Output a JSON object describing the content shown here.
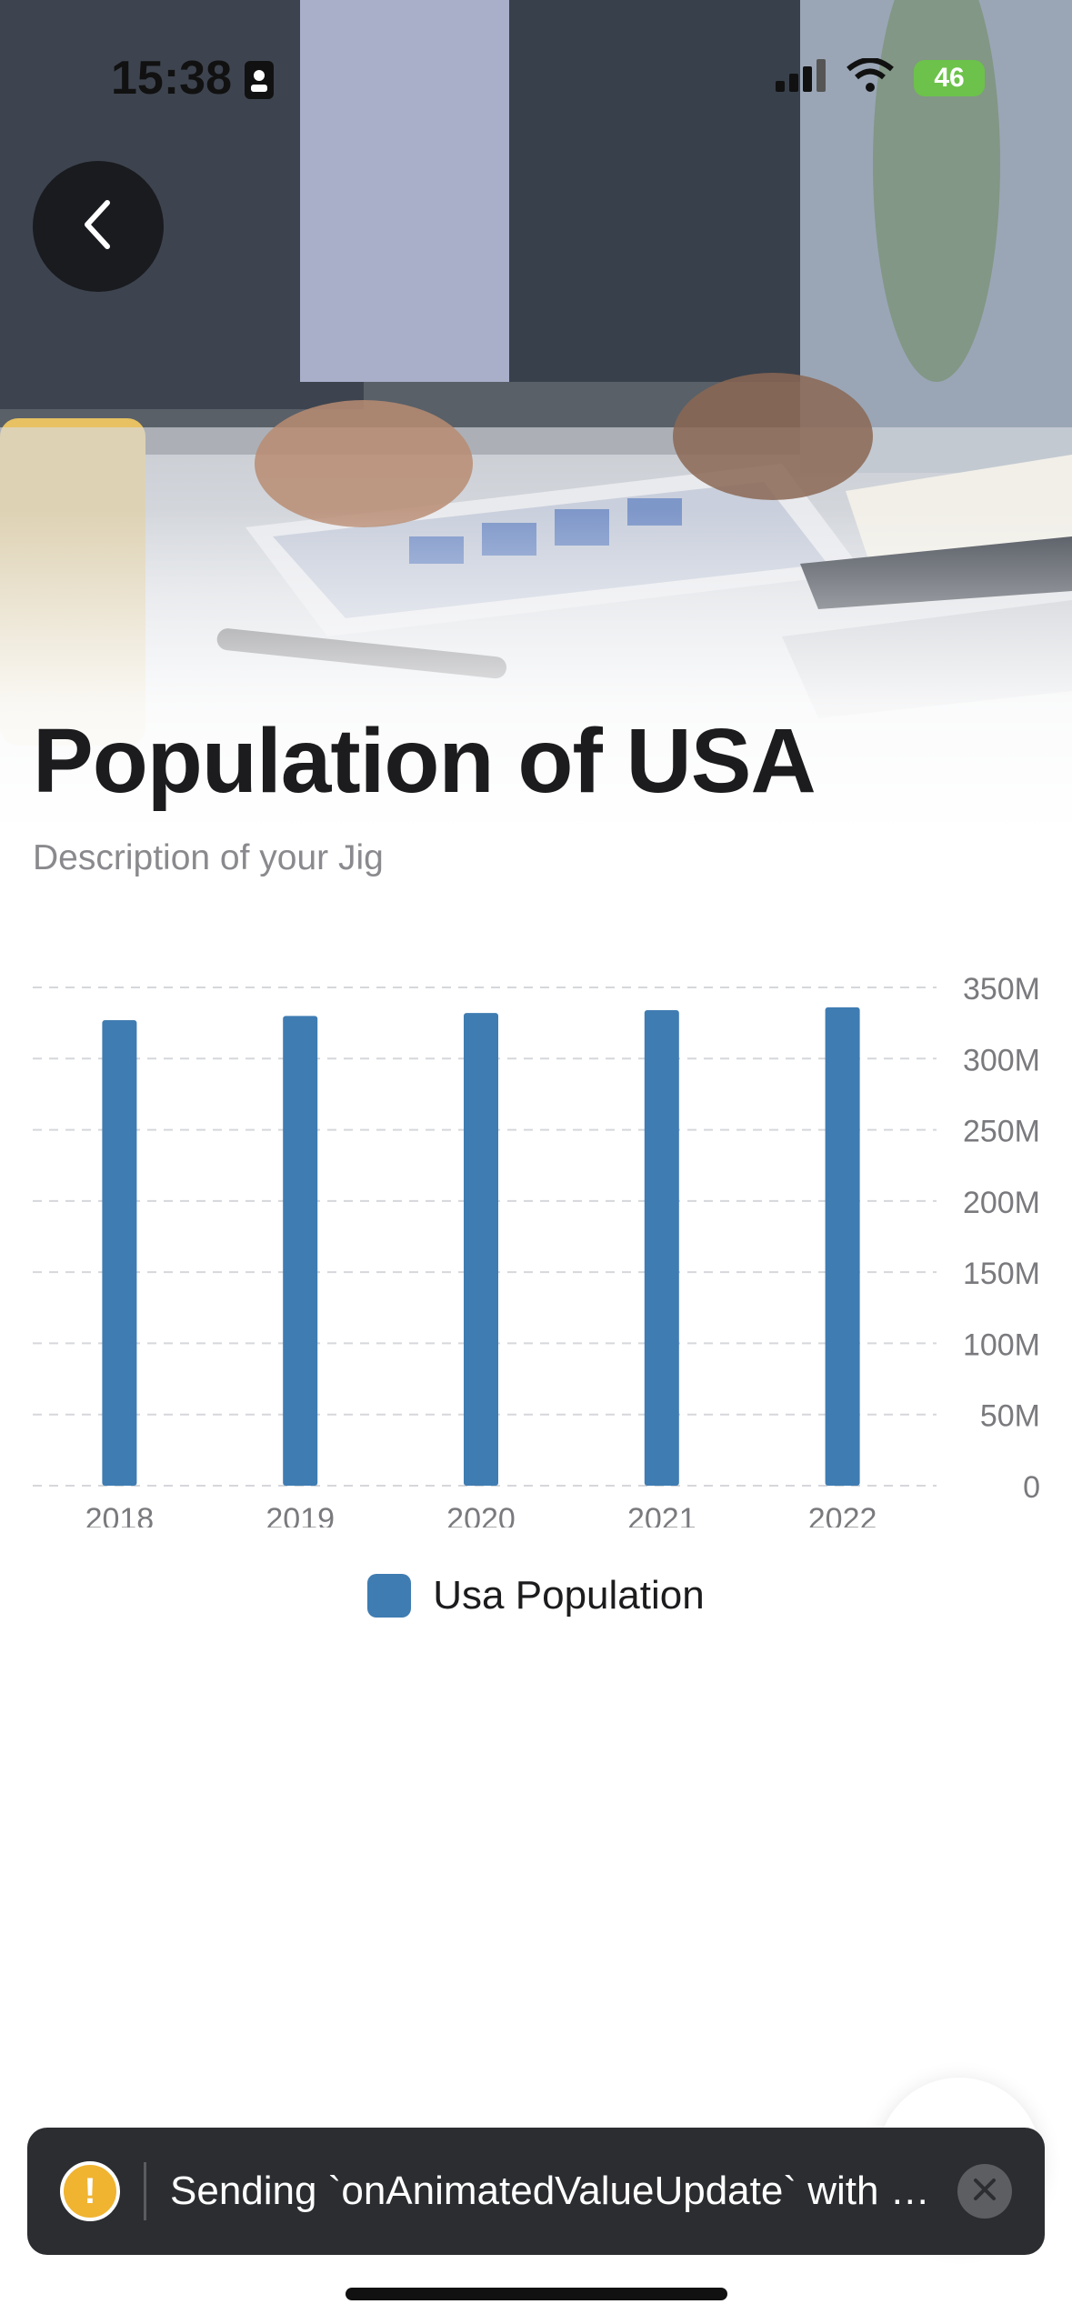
{
  "status_bar": {
    "time": "15:38",
    "battery": "46"
  },
  "header": {
    "title": "Population of USA",
    "subtitle": "Description of your Jig"
  },
  "chart_data": {
    "type": "bar",
    "categories": [
      "2018",
      "2019",
      "2020",
      "2021",
      "2022"
    ],
    "series": [
      {
        "name": "Usa Population",
        "values": [
          327,
          330,
          332,
          334,
          336
        ],
        "color": "#3f7cb2"
      }
    ],
    "y_ticks": [
      "0",
      "50M",
      "100M",
      "150M",
      "200M",
      "250M",
      "300M",
      "350M"
    ],
    "ylim": [
      0,
      350
    ],
    "y_unit": "M",
    "y_axis_side": "right",
    "grid": "dashed",
    "legend_position": "bottom"
  },
  "toast": {
    "message": "Sending `onAnimatedValueUpdate` with n...",
    "type": "warning"
  },
  "icons": {
    "back": "chevron-left-icon",
    "warning": "exclamation-icon",
    "close": "close-icon",
    "signal": "signal-icon",
    "wifi": "wifi-icon",
    "badge": "contact-card-icon"
  }
}
